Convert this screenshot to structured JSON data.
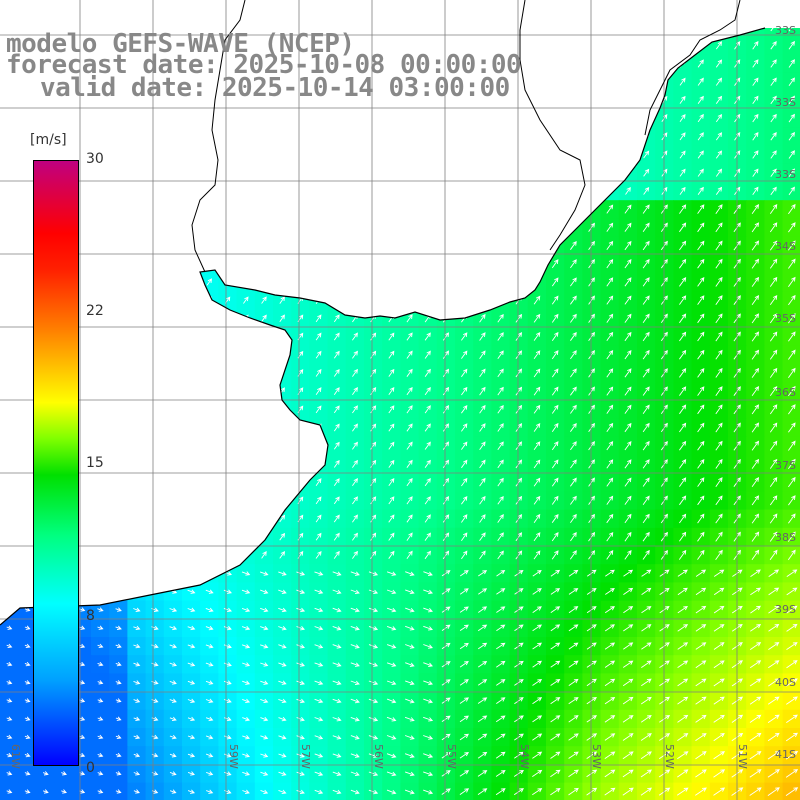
{
  "title": {
    "line1": "modelo GEFS-WAVE (NCEP)",
    "line2": "forecast date: 2025-10-08 00:00:00",
    "line3": "valid date: 2025-10-14 03:00:00"
  },
  "colorbar": {
    "unit": "[m/s]",
    "ticks": [
      "30",
      "22",
      "15",
      "8",
      "0"
    ],
    "tick_values": [
      30,
      22,
      15,
      8,
      0
    ],
    "min": 0,
    "max": 30,
    "colors": [
      "#0000ff",
      "#00a0ff",
      "#00ffff",
      "#00ff80",
      "#00e000",
      "#7fff00",
      "#ffff00",
      "#ff8000",
      "#ff0000",
      "#c00080"
    ]
  },
  "map": {
    "lat_labels": [
      "33S",
      "34S",
      "35S",
      "36S",
      "37S",
      "38S",
      "39S",
      "40S",
      "41S"
    ],
    "lon_labels": [
      "61W",
      "59W",
      "57W",
      "56W",
      "55W",
      "54W",
      "53W",
      "52W",
      "51W"
    ],
    "land_color": "#ffffff",
    "grid_color": "#808080",
    "coast_color": "#000000"
  }
}
